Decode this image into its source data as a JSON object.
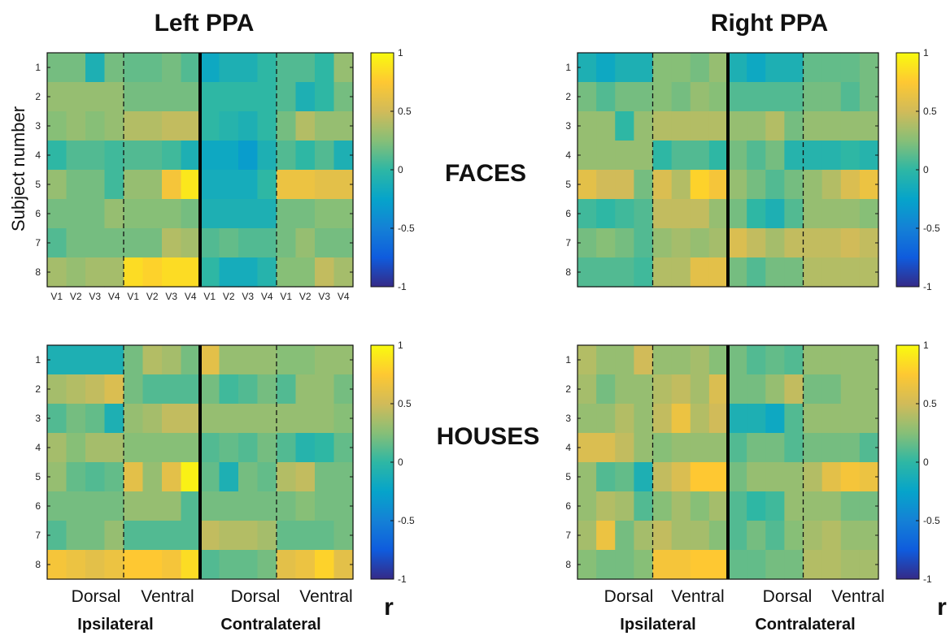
{
  "texts": {
    "title_left": "Left PPA",
    "title_right": "Right PPA",
    "ylabel": "Subject number",
    "faces": "FACES",
    "houses": "HOUSES",
    "dorsal": "Dorsal",
    "ventral": "Ventral",
    "ipsilateral": "Ipsilateral",
    "contralateral": "Contralateral",
    "r": "r"
  },
  "chart_data": [
    {
      "type": "heatmap",
      "title": "Left PPA",
      "condition": "FACES",
      "ylabel": "Subject number",
      "rows": [
        "1",
        "2",
        "3",
        "4",
        "5",
        "6",
        "7",
        "8"
      ],
      "columns": [
        "V1",
        "V2",
        "V3",
        "V4",
        "V1",
        "V2",
        "V3",
        "V4",
        "V1",
        "V2",
        "V3",
        "V4",
        "V1",
        "V2",
        "V3",
        "V4"
      ],
      "show_column_ticks": true,
      "groups": [
        "Ipsilateral Dorsal",
        "Ipsilateral Ventral",
        "Contralateral Dorsal",
        "Contralateral Ventral"
      ],
      "clim": [
        -1,
        1
      ],
      "colorbar_ticks": [
        "1",
        "0.5",
        "0",
        "-0.5",
        "-1"
      ],
      "values": [
        [
          0.2,
          0.2,
          -0.1,
          0.2,
          0.15,
          0.15,
          0.2,
          0.1,
          -0.2,
          -0.1,
          -0.1,
          0.0,
          0.1,
          0.1,
          0.0,
          0.3
        ],
        [
          0.3,
          0.3,
          0.3,
          0.3,
          0.2,
          0.2,
          0.2,
          0.2,
          0.0,
          0.0,
          0.0,
          0.0,
          0.1,
          -0.1,
          0.0,
          0.2
        ],
        [
          0.25,
          0.3,
          0.25,
          0.3,
          0.4,
          0.4,
          0.45,
          0.45,
          0.0,
          -0.05,
          -0.1,
          0.0,
          0.2,
          0.4,
          0.3,
          0.3
        ],
        [
          0.0,
          0.1,
          0.1,
          0.05,
          0.1,
          0.1,
          0.05,
          -0.1,
          -0.2,
          -0.2,
          -0.3,
          -0.1,
          0.1,
          0.0,
          0.1,
          -0.1
        ],
        [
          0.3,
          0.2,
          0.2,
          0.05,
          0.3,
          0.3,
          0.7,
          0.9,
          -0.15,
          -0.15,
          -0.15,
          0.0,
          0.65,
          0.65,
          0.6,
          0.6
        ],
        [
          0.2,
          0.2,
          0.2,
          0.3,
          0.25,
          0.25,
          0.25,
          0.2,
          -0.1,
          -0.1,
          -0.1,
          -0.1,
          0.2,
          0.2,
          0.25,
          0.25
        ],
        [
          0.1,
          0.2,
          0.2,
          0.2,
          0.2,
          0.2,
          0.4,
          0.35,
          0.1,
          0.15,
          0.1,
          0.1,
          0.2,
          0.3,
          0.2,
          0.2
        ],
        [
          0.35,
          0.3,
          0.35,
          0.35,
          0.85,
          0.8,
          0.85,
          0.85,
          0.0,
          -0.15,
          -0.15,
          -0.05,
          0.25,
          0.25,
          0.45,
          0.35
        ]
      ]
    },
    {
      "type": "heatmap",
      "title": "Right PPA",
      "condition": "FACES",
      "rows": [
        "1",
        "2",
        "3",
        "4",
        "5",
        "6",
        "7",
        "8"
      ],
      "show_column_ticks": false,
      "clim": [
        -1,
        1
      ],
      "colorbar_ticks": [
        "1",
        "0.5",
        "0",
        "-0.5",
        "-1"
      ],
      "values": [
        [
          -0.1,
          -0.2,
          -0.1,
          -0.1,
          0.25,
          0.25,
          0.2,
          0.3,
          -0.1,
          -0.2,
          -0.1,
          -0.1,
          0.15,
          0.15,
          0.15,
          0.2
        ],
        [
          0.2,
          0.1,
          0.2,
          0.2,
          0.25,
          0.2,
          0.3,
          0.25,
          0.1,
          0.1,
          0.1,
          0.1,
          0.2,
          0.2,
          0.1,
          0.2
        ],
        [
          0.3,
          0.3,
          0.0,
          0.3,
          0.4,
          0.4,
          0.4,
          0.4,
          0.3,
          0.3,
          0.4,
          0.2,
          0.3,
          0.3,
          0.3,
          0.3
        ],
        [
          0.3,
          0.3,
          0.3,
          0.3,
          0.0,
          0.1,
          0.1,
          0.0,
          0.2,
          0.1,
          0.2,
          -0.05,
          -0.05,
          -0.05,
          0.0,
          -0.05
        ],
        [
          0.6,
          0.5,
          0.5,
          0.2,
          0.55,
          0.4,
          0.8,
          0.7,
          0.3,
          0.2,
          0.1,
          0.2,
          0.3,
          0.4,
          0.55,
          0.65
        ],
        [
          0.05,
          0.0,
          0.05,
          0.1,
          0.45,
          0.45,
          0.45,
          0.3,
          0.2,
          0.0,
          -0.1,
          0.1,
          0.3,
          0.3,
          0.3,
          0.25
        ],
        [
          0.2,
          0.25,
          0.2,
          0.1,
          0.3,
          0.35,
          0.3,
          0.35,
          0.55,
          0.45,
          0.35,
          0.45,
          0.45,
          0.45,
          0.5,
          0.45
        ],
        [
          0.1,
          0.1,
          0.1,
          0.05,
          0.4,
          0.4,
          0.6,
          0.6,
          0.2,
          0.1,
          0.2,
          0.2,
          0.4,
          0.4,
          0.4,
          0.4
        ]
      ]
    },
    {
      "type": "heatmap",
      "title": "Left PPA",
      "condition": "HOUSES",
      "rows": [
        "1",
        "2",
        "3",
        "4",
        "5",
        "6",
        "7",
        "8"
      ],
      "xlabel_groups": [
        "Dorsal",
        "Ventral",
        "Dorsal",
        "Ventral"
      ],
      "xlabel_sides": [
        "Ipsilateral",
        "Contralateral"
      ],
      "clim": [
        -1,
        1
      ],
      "colorbar_ticks": [
        "1",
        "0.5",
        "0",
        "-0.5",
        "-1"
      ],
      "values": [
        [
          -0.1,
          -0.1,
          -0.1,
          -0.1,
          0.2,
          0.4,
          0.35,
          0.2,
          0.6,
          0.3,
          0.3,
          0.3,
          0.25,
          0.25,
          0.3,
          0.3
        ],
        [
          0.35,
          0.4,
          0.45,
          0.55,
          0.2,
          0.1,
          0.1,
          0.1,
          0.2,
          0.05,
          0.1,
          0.2,
          0.1,
          0.3,
          0.3,
          0.2
        ],
        [
          0.1,
          0.2,
          0.15,
          -0.1,
          0.3,
          0.35,
          0.45,
          0.45,
          0.3,
          0.3,
          0.3,
          0.3,
          0.3,
          0.3,
          0.3,
          0.25
        ],
        [
          0.35,
          0.25,
          0.35,
          0.35,
          0.25,
          0.25,
          0.25,
          0.25,
          0.1,
          0.15,
          0.1,
          0.2,
          0.1,
          -0.05,
          0.0,
          0.15
        ],
        [
          0.3,
          0.15,
          0.1,
          0.15,
          0.6,
          0.3,
          0.6,
          0.95,
          0.15,
          -0.1,
          0.2,
          0.15,
          0.4,
          0.45,
          0.2,
          0.2
        ],
        [
          0.2,
          0.2,
          0.2,
          0.2,
          0.3,
          0.3,
          0.3,
          0.1,
          0.2,
          0.2,
          0.2,
          0.2,
          0.2,
          0.25,
          0.2,
          0.2
        ],
        [
          0.1,
          0.2,
          0.2,
          0.3,
          0.1,
          0.1,
          0.1,
          0.1,
          0.45,
          0.4,
          0.4,
          0.35,
          0.15,
          0.15,
          0.15,
          0.2
        ],
        [
          0.7,
          0.65,
          0.6,
          0.65,
          0.75,
          0.75,
          0.7,
          0.85,
          0.1,
          0.15,
          0.15,
          0.2,
          0.6,
          0.65,
          0.8,
          0.6
        ]
      ]
    },
    {
      "type": "heatmap",
      "title": "Right PPA",
      "condition": "HOUSES",
      "rows": [
        "1",
        "2",
        "3",
        "4",
        "5",
        "6",
        "7",
        "8"
      ],
      "xlabel_groups": [
        "Dorsal",
        "Ventral",
        "Dorsal",
        "Ventral"
      ],
      "xlabel_sides": [
        "Ipsilateral",
        "Contralateral"
      ],
      "clim": [
        -1,
        1
      ],
      "colorbar_ticks": [
        "1",
        "0.5",
        "0",
        "-0.5",
        "-1"
      ],
      "values": [
        [
          0.4,
          0.3,
          0.3,
          0.5,
          0.3,
          0.3,
          0.35,
          0.25,
          0.2,
          0.1,
          0.15,
          0.1,
          0.3,
          0.3,
          0.3,
          0.3
        ],
        [
          0.35,
          0.2,
          0.3,
          0.3,
          0.4,
          0.45,
          0.35,
          0.55,
          0.2,
          0.2,
          0.3,
          0.45,
          0.2,
          0.2,
          0.3,
          0.3
        ],
        [
          0.3,
          0.3,
          0.4,
          0.3,
          0.45,
          0.65,
          0.4,
          0.5,
          -0.1,
          -0.1,
          -0.2,
          0.1,
          0.3,
          0.3,
          0.3,
          0.3
        ],
        [
          0.55,
          0.55,
          0.45,
          0.3,
          0.25,
          0.3,
          0.3,
          0.3,
          0.1,
          0.2,
          0.2,
          0.1,
          0.2,
          0.2,
          0.2,
          0.1
        ],
        [
          0.3,
          0.1,
          0.15,
          -0.1,
          0.45,
          0.55,
          0.75,
          0.75,
          0.2,
          0.3,
          0.3,
          0.3,
          0.4,
          0.6,
          0.7,
          0.65
        ],
        [
          0.3,
          0.4,
          0.35,
          0.1,
          0.25,
          0.35,
          0.25,
          0.35,
          0.1,
          0.0,
          0.05,
          0.3,
          0.3,
          0.3,
          0.2,
          0.2
        ],
        [
          0.35,
          0.65,
          0.2,
          0.35,
          0.45,
          0.35,
          0.35,
          0.25,
          0.1,
          0.2,
          0.1,
          0.25,
          0.35,
          0.4,
          0.3,
          0.3
        ],
        [
          0.25,
          0.2,
          0.2,
          0.25,
          0.7,
          0.7,
          0.75,
          0.75,
          0.15,
          0.15,
          0.2,
          0.2,
          0.4,
          0.4,
          0.35,
          0.35
        ]
      ]
    }
  ]
}
